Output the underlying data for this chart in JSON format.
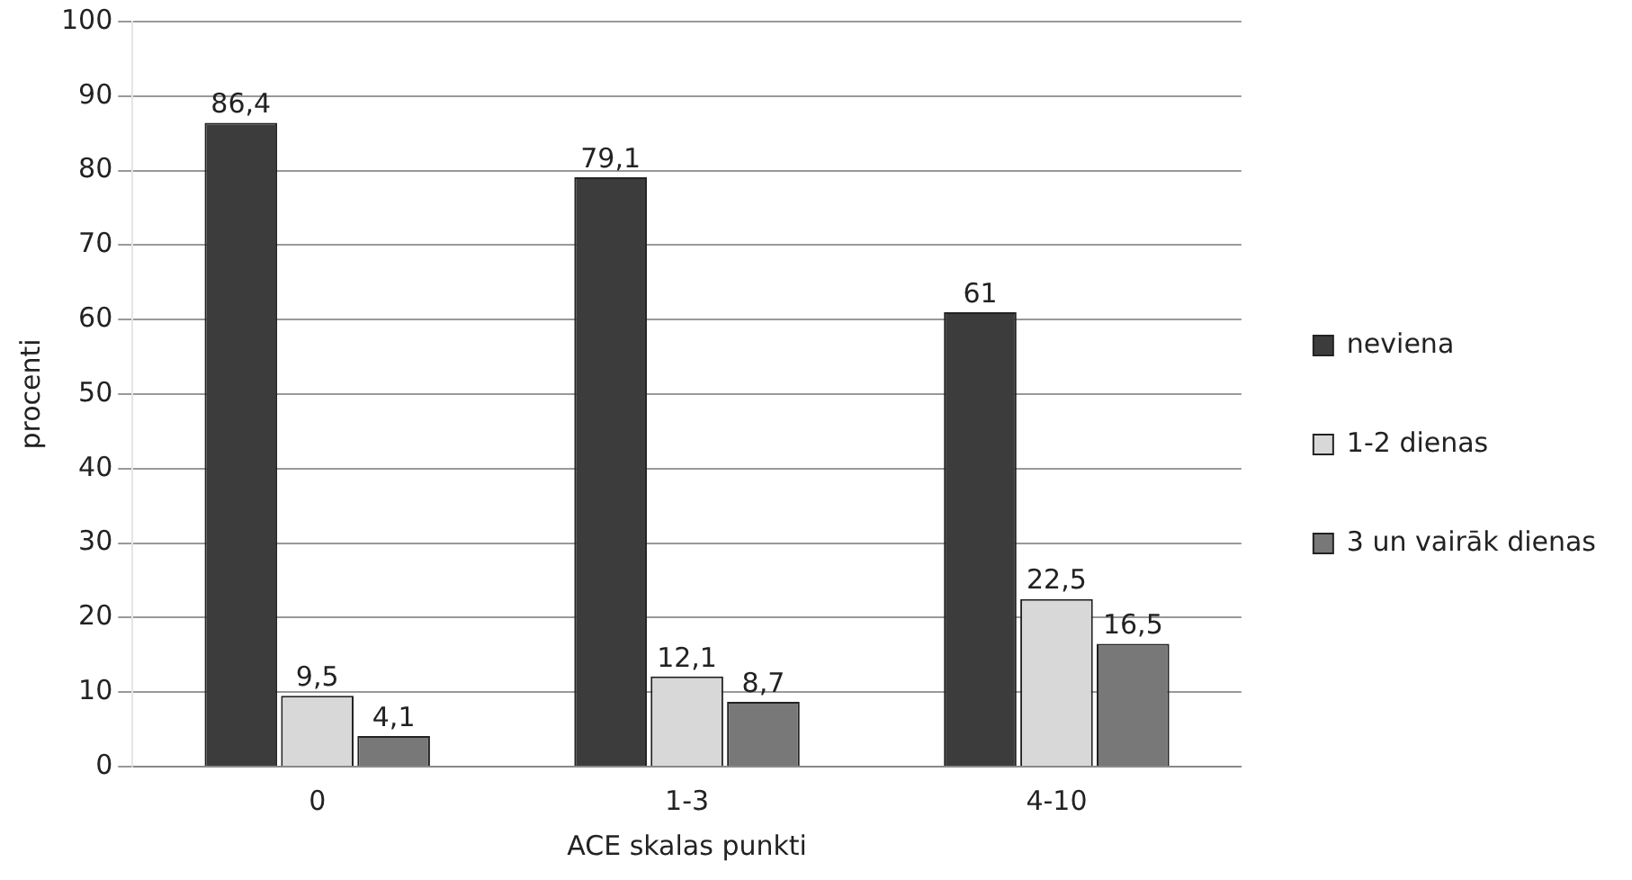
{
  "chart_data": {
    "type": "bar",
    "xlabel": "ACE skalas punkti",
    "ylabel": "procenti",
    "categories": [
      "0",
      "1-3",
      "4-10"
    ],
    "series": [
      {
        "name": "neviena",
        "color": "#3c3c3c",
        "values": [
          86.4,
          79.1,
          61
        ]
      },
      {
        "name": "1-2 dienas",
        "color": "#d8d8d8",
        "values": [
          9.5,
          12.1,
          22.5
        ]
      },
      {
        "name": "3 un vairāk dienas",
        "color": "#787878",
        "values": [
          4.1,
          8.7,
          16.5
        ]
      }
    ],
    "value_labels": [
      [
        "86,4",
        "79,1",
        "61"
      ],
      [
        "9,5",
        "12,1",
        "22,5"
      ],
      [
        "4,1",
        "8,7",
        "16,5"
      ]
    ],
    "ylim": [
      0,
      100
    ],
    "yticks": [
      0,
      10,
      20,
      30,
      40,
      50,
      60,
      70,
      80,
      90,
      100
    ],
    "grid": "y",
    "legend": "right"
  }
}
